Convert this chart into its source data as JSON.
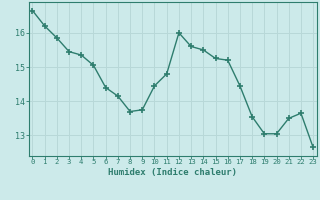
{
  "x": [
    0,
    1,
    2,
    3,
    4,
    5,
    6,
    7,
    8,
    9,
    10,
    11,
    12,
    13,
    14,
    15,
    16,
    17,
    18,
    19,
    20,
    21,
    22,
    23
  ],
  "y": [
    16.65,
    16.2,
    15.85,
    15.45,
    15.35,
    15.05,
    14.4,
    14.15,
    13.7,
    13.75,
    14.45,
    14.8,
    16.0,
    15.6,
    15.5,
    15.25,
    15.2,
    14.45,
    13.55,
    13.05,
    13.05,
    13.5,
    13.65,
    12.65
  ],
  "line_color": "#2e7d6e",
  "marker": "+",
  "marker_size": 4.0,
  "bg_color": "#cceaea",
  "grid_color": "#b8d8d8",
  "axis_color": "#2e7d6e",
  "tick_color": "#2e7d6e",
  "xlabel": "Humidex (Indice chaleur)",
  "ylim": [
    12.4,
    16.9
  ],
  "yticks": [
    13,
    14,
    15,
    16
  ],
  "xticks": [
    0,
    1,
    2,
    3,
    4,
    5,
    6,
    7,
    8,
    9,
    10,
    11,
    12,
    13,
    14,
    15,
    16,
    17,
    18,
    19,
    20,
    21,
    22,
    23
  ],
  "line_width": 1.0
}
